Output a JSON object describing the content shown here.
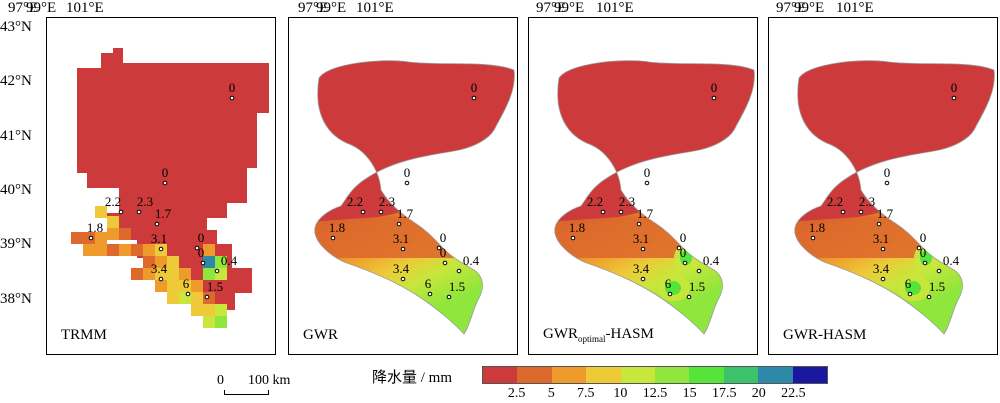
{
  "axes": {
    "x_ticks": [
      "97°E",
      "99°E",
      "101°E"
    ],
    "y_ticks": [
      "43°N",
      "42°N",
      "41°N",
      "40°N",
      "39°N",
      "38°N"
    ]
  },
  "panels": [
    {
      "title": "TRMM"
    },
    {
      "title": "GWR"
    },
    {
      "title_main": "GWR",
      "title_sub": "optimal",
      "title_tail": "-HASM"
    },
    {
      "title": "GWR-HASM"
    }
  ],
  "stations": [
    {
      "label": "0"
    },
    {
      "label": "0"
    },
    {
      "label": "2.2"
    },
    {
      "label": "2.3"
    },
    {
      "label": "1.7"
    },
    {
      "label": "1.8"
    },
    {
      "label": "3.1"
    },
    {
      "label": "0"
    },
    {
      "label": "0"
    },
    {
      "label": "0.4"
    },
    {
      "label": "3.4"
    },
    {
      "label": "6"
    },
    {
      "label": "1.5"
    }
  ],
  "scale": {
    "start": "0",
    "end": "100 km"
  },
  "legend": {
    "title": "降水量 / mm",
    "colors": [
      "#cc3a3c",
      "#dd6a2c",
      "#ef9a2c",
      "#eec938",
      "#c8e63c",
      "#8fe63c",
      "#54e43a",
      "#3cc26a",
      "#2e88a8",
      "#1818a0"
    ],
    "ticks": [
      "2.5",
      "5",
      "7.5",
      "10",
      "12.5",
      "15",
      "17.5",
      "20",
      "22.5"
    ]
  }
}
